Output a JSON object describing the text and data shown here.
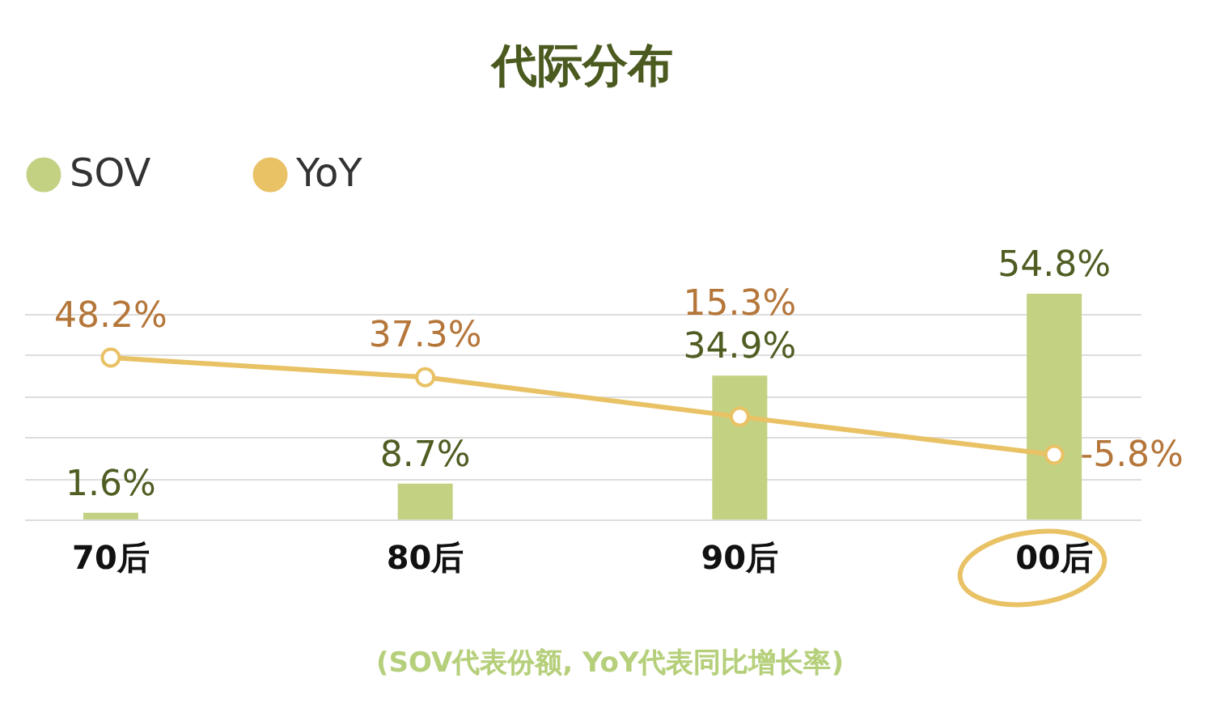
{
  "chart_data": {
    "type": "bar",
    "title": "代际分布",
    "categories": [
      "70后",
      "80后",
      "90后",
      "00后"
    ],
    "series": [
      {
        "name": "SOV",
        "color": "#c3d183",
        "values": [
          1.6,
          8.7,
          34.9,
          54.8
        ],
        "value_labels": [
          "1.6%",
          "8.7%",
          "34.9%",
          "54.8%"
        ]
      },
      {
        "name": "YoY",
        "type": "line",
        "axis": "y2",
        "color": "#e9c266",
        "values": [
          48.2,
          37.3,
          15.3,
          -5.8
        ],
        "value_labels": [
          "48.2%",
          "37.3%",
          "15.3%",
          "-5.8%"
        ]
      }
    ],
    "grid": "y",
    "tick_labels": "x",
    "legend": "top",
    "marker": "circle",
    "annotations": [
      "(SOV代表份额, YoY代表同比增长率)"
    ]
  }
}
